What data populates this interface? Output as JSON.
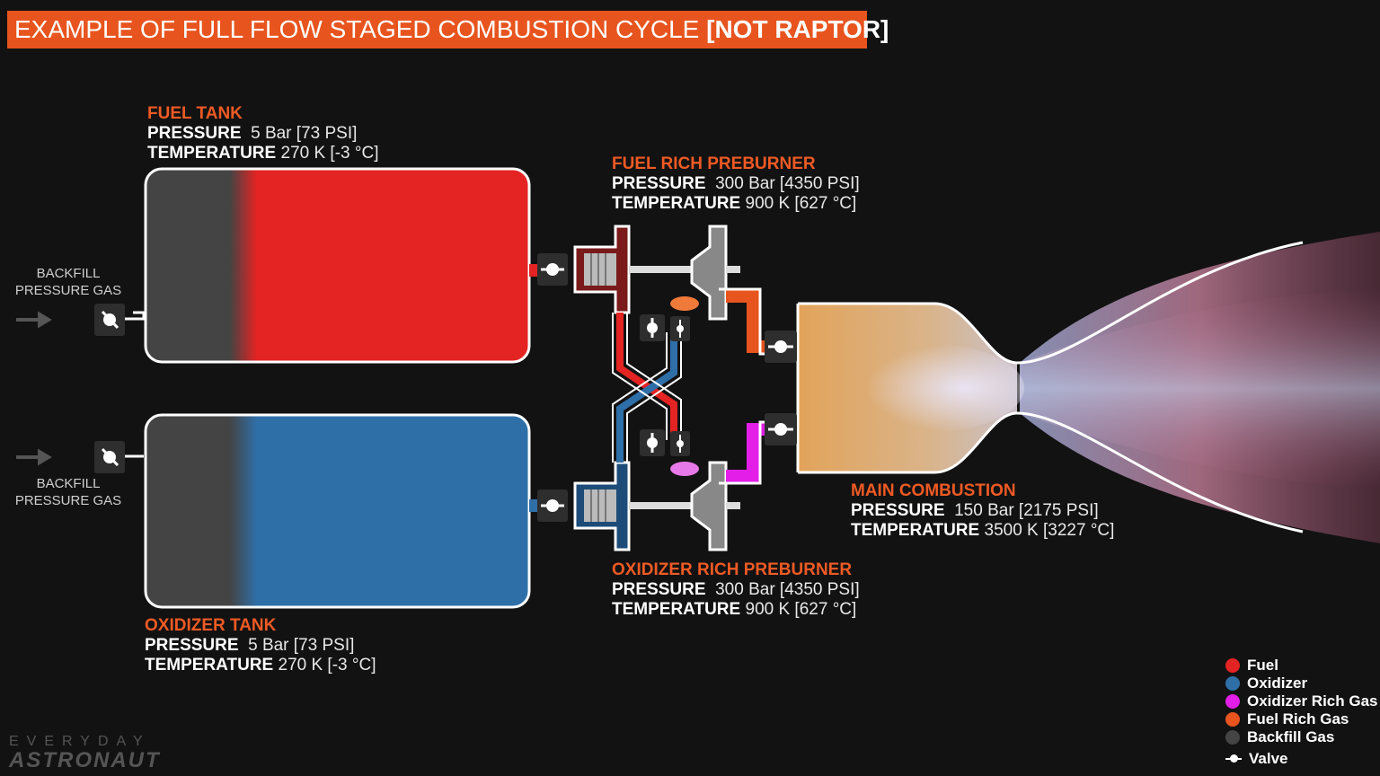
{
  "title": {
    "main": "EXAMPLE OF FULL FLOW STAGED COMBUSTION CYCLE",
    "tag": "[NOT RAPTOR]"
  },
  "fuel_tank": {
    "heading": "FUEL TANK",
    "pressure_label": "PRESSURE",
    "pressure_value": "5 Bar [73 PSI]",
    "temperature_label": "TEMPERATURE",
    "temperature_value": "270 K [-3 °C]"
  },
  "oxidizer_tank": {
    "heading": "OXIDIZER TANK",
    "pressure_label": "PRESSURE",
    "pressure_value": "5 Bar [73 PSI]",
    "temperature_label": "TEMPERATURE",
    "temperature_value": "270 K [-3 °C]"
  },
  "fuel_preburner": {
    "heading": "FUEL RICH PREBURNER",
    "pressure_label": "PRESSURE",
    "pressure_value": "300 Bar [4350 PSI]",
    "temperature_label": "TEMPERATURE",
    "temperature_value": "900 K [627 °C]"
  },
  "ox_preburner": {
    "heading": "OXIDIZER RICH PREBURNER",
    "pressure_label": "PRESSURE",
    "pressure_value": "300 Bar [4350 PSI]",
    "temperature_label": "TEMPERATURE",
    "temperature_value": "900 K [627 °C]"
  },
  "main_combustion": {
    "heading": "MAIN COMBUSTION",
    "pressure_label": "PRESSURE",
    "pressure_value": "150 Bar [2175 PSI]",
    "temperature_label": "TEMPERATURE",
    "temperature_value": "3500 K [3227 °C]"
  },
  "backfill_top": {
    "line1": "BACKFILL",
    "line2": "PRESSURE GAS"
  },
  "backfill_bottom": {
    "line1": "BACKFILL",
    "line2": "PRESSURE GAS"
  },
  "legend": [
    {
      "label": "Fuel",
      "color": "#e42323"
    },
    {
      "label": "Oxidizer",
      "color": "#2f6fa8"
    },
    {
      "label": "Oxidizer Rich Gas",
      "color": "#e21ee8"
    },
    {
      "label": "Fuel Rich Gas",
      "color": "#e8541e"
    },
    {
      "label": "Backfill Gas",
      "color": "#444444"
    }
  ],
  "legend_valve": "Valve",
  "logo": {
    "line1": "EVERYDAY",
    "line2": "ASTRONAUT"
  },
  "colors": {
    "fuel": "#e42323",
    "oxidizer": "#2f6fa8",
    "ox_rich": "#e21ee8",
    "fuel_rich": "#e8541e",
    "backfill": "#444444",
    "accent": "#e8541e"
  }
}
